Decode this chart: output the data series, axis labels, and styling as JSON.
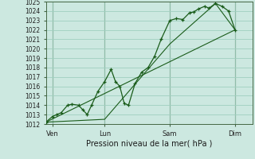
{
  "xlabel": "Pression niveau de la mer( hPa )",
  "ylim": [
    1012,
    1025
  ],
  "xlim": [
    0,
    9.5
  ],
  "yticks": [
    1012,
    1013,
    1014,
    1015,
    1016,
    1017,
    1018,
    1019,
    1020,
    1021,
    1022,
    1023,
    1024,
    1025
  ],
  "xtick_labels": [
    "Ven",
    "Lun",
    "Sam",
    "Dim"
  ],
  "xtick_positions": [
    0.3,
    2.7,
    5.7,
    8.7
  ],
  "vline_positions": [
    0.3,
    2.7,
    5.7,
    8.7
  ],
  "bg_color": "#cce8e0",
  "line_color": "#1a5c1a",
  "grid_color": "#9fcfbf",
  "series1": [
    [
      0.0,
      1012.2
    ],
    [
      0.3,
      1012.8
    ],
    [
      0.5,
      1013.0
    ],
    [
      0.7,
      1013.2
    ],
    [
      1.0,
      1014.0
    ],
    [
      1.2,
      1014.1
    ],
    [
      1.5,
      1014.0
    ],
    [
      1.7,
      1013.5
    ],
    [
      1.9,
      1013.0
    ],
    [
      2.1,
      1014.0
    ],
    [
      2.4,
      1015.5
    ],
    [
      2.7,
      1016.5
    ],
    [
      3.0,
      1017.8
    ],
    [
      3.2,
      1016.5
    ],
    [
      3.4,
      1016.0
    ],
    [
      3.6,
      1014.2
    ],
    [
      3.8,
      1014.0
    ],
    [
      4.1,
      1016.3
    ],
    [
      4.4,
      1017.5
    ],
    [
      4.7,
      1018.0
    ],
    [
      5.0,
      1019.2
    ],
    [
      5.3,
      1021.0
    ],
    [
      5.7,
      1023.0
    ],
    [
      6.0,
      1023.2
    ],
    [
      6.3,
      1023.1
    ],
    [
      6.6,
      1023.8
    ],
    [
      6.8,
      1023.9
    ],
    [
      7.0,
      1024.2
    ],
    [
      7.3,
      1024.5
    ],
    [
      7.5,
      1024.3
    ],
    [
      7.8,
      1024.8
    ],
    [
      8.1,
      1024.5
    ],
    [
      8.4,
      1024.0
    ],
    [
      8.7,
      1022.0
    ]
  ],
  "series2": [
    [
      0.0,
      1012.2
    ],
    [
      2.7,
      1012.5
    ],
    [
      5.7,
      1020.5
    ],
    [
      7.8,
      1024.8
    ],
    [
      8.7,
      1022.0
    ]
  ],
  "series3": [
    [
      0.0,
      1012.2
    ],
    [
      8.7,
      1022.0
    ]
  ]
}
